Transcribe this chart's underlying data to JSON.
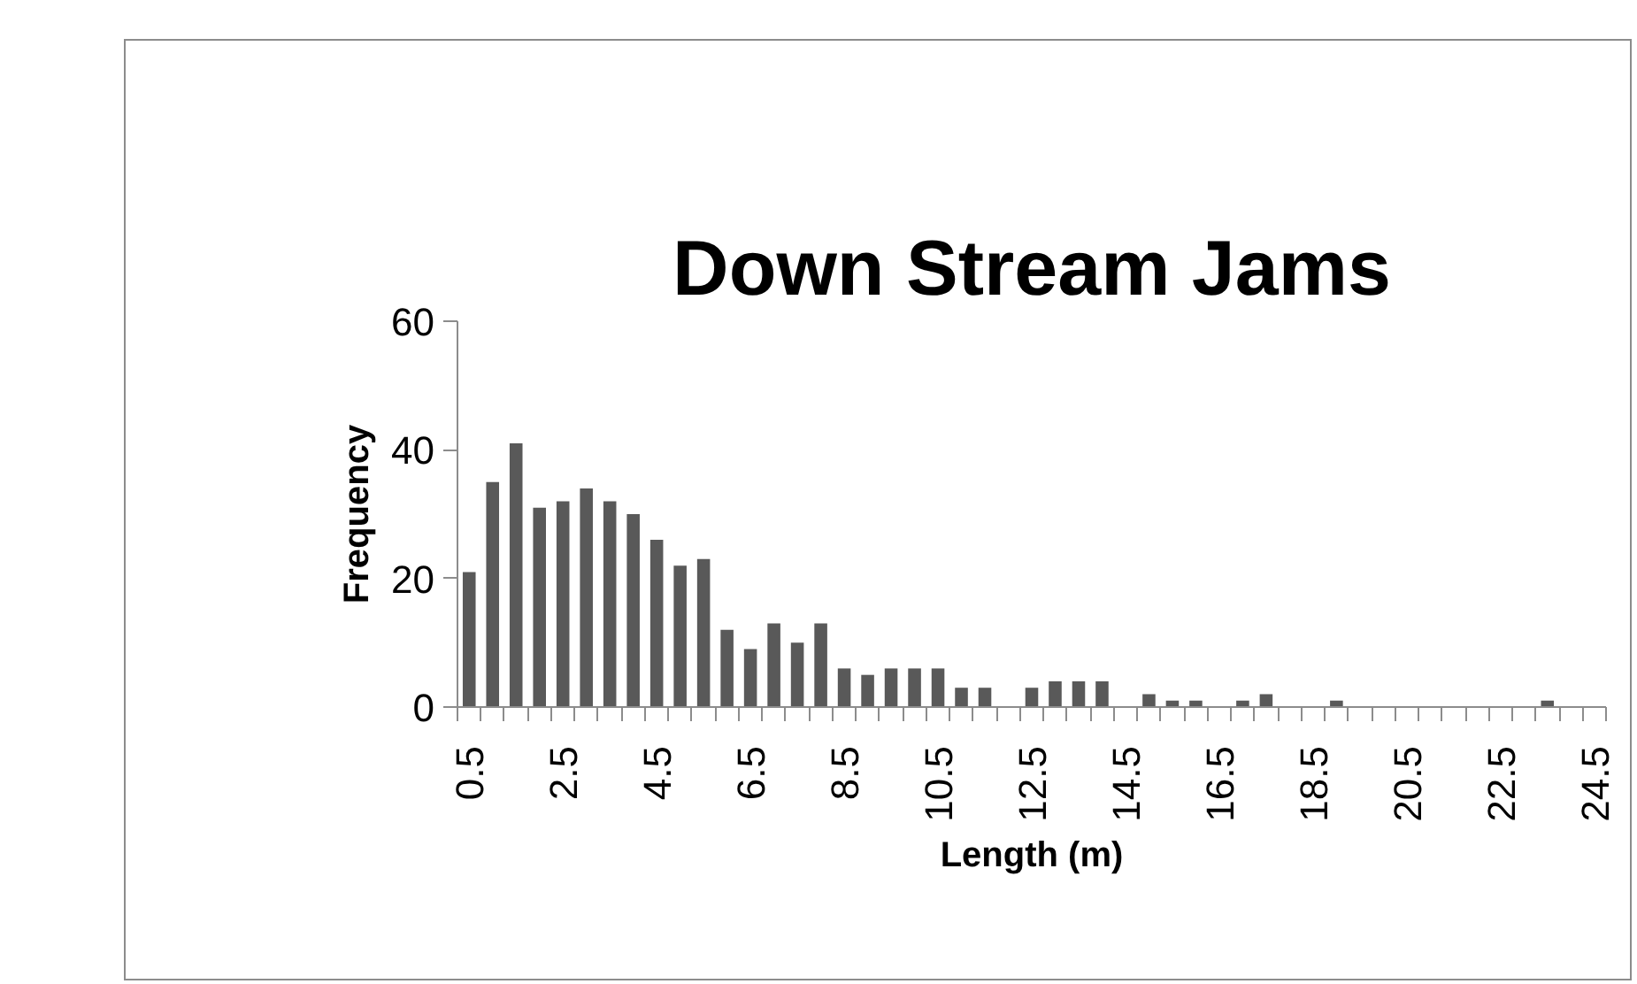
{
  "chart_data": {
    "type": "bar",
    "title": "Down Stream Jams",
    "xlabel": "Length (m)",
    "ylabel": "Frequency",
    "categories": [
      "0.5",
      null,
      null,
      null,
      "2.5",
      null,
      null,
      null,
      "4.5",
      null,
      null,
      null,
      "6.5",
      null,
      null,
      null,
      "8.5",
      null,
      null,
      null,
      "10.5",
      null,
      null,
      null,
      "12.5",
      null,
      null,
      null,
      "14.5",
      null,
      null,
      null,
      "16.5",
      null,
      null,
      null,
      "18.5",
      null,
      null,
      null,
      "20.5",
      null,
      null,
      null,
      "22.5",
      null,
      null,
      null,
      "24.5"
    ],
    "values": [
      21,
      35,
      41,
      31,
      32,
      34,
      32,
      30,
      26,
      22,
      23,
      12,
      9,
      13,
      10,
      13,
      6,
      5,
      6,
      6,
      6,
      3,
      3,
      0,
      3,
      4,
      4,
      4,
      0,
      2,
      1,
      1,
      0,
      1,
      2,
      0,
      0,
      1,
      0,
      0,
      0,
      0,
      0,
      0,
      0,
      0,
      1,
      0,
      0
    ],
    "color": "#595959",
    "ylim": [
      0,
      60
    ],
    "yticks": [
      0,
      20,
      40,
      60
    ],
    "grid": false
  }
}
